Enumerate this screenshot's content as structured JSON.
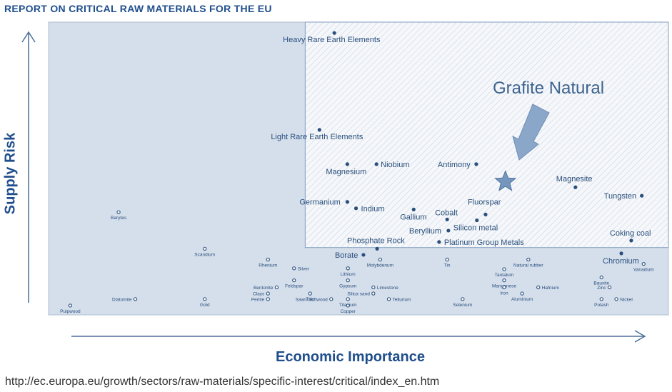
{
  "header": {
    "title": "REPORT ON CRITICAL RAW MATERIALS FOR THE EU"
  },
  "footer": {
    "source": "http://ec.europa.eu/growth/sectors/raw-materials/specific-interest/critical/index_en.htm"
  },
  "colors": {
    "title": "#1f4e8c",
    "axis": "#4d6f9a",
    "plot_bg": "#d5dfec",
    "critical_region": "#f5f7fa",
    "hatch": "#c6d1df",
    "marker": "#2a4f7c",
    "label": "#2a4f7c",
    "arrow": "#8aa7c9",
    "annotation": "#3e648f"
  },
  "chart_data": {
    "type": "scatter",
    "title": "",
    "xlabel": "Economic Importance",
    "ylabel": "Supply Risk",
    "xlim": [
      0,
      100
    ],
    "ylim": [
      0,
      100
    ],
    "grid": false,
    "critical_region": {
      "x_from": 41.4,
      "y_from": 23.0
    },
    "annotation": {
      "text": "Grafite Natural",
      "icon": "star-icon",
      "x": 73.7,
      "y": 45.5
    },
    "critical_points": [
      {
        "label": "Heavy Rare Earth Elements",
        "x": 46.1,
        "y": 96.3
      },
      {
        "label": "Light Rare Earth Elements",
        "x": 43.7,
        "y": 63.2
      },
      {
        "label": "Magnesium",
        "x": 48.2,
        "y": 51.5
      },
      {
        "label": "Niobium",
        "x": 52.9,
        "y": 51.5
      },
      {
        "label": "Antimony",
        "x": 69.0,
        "y": 51.5
      },
      {
        "label": "Magnesite",
        "x": 85.0,
        "y": 43.6
      },
      {
        "label": "Tungsten",
        "x": 95.7,
        "y": 40.7
      },
      {
        "label": "Germanium",
        "x": 48.2,
        "y": 38.6
      },
      {
        "label": "Indium",
        "x": 49.6,
        "y": 36.4
      },
      {
        "label": "Gallium",
        "x": 58.9,
        "y": 36.0
      },
      {
        "label": "Cobalt",
        "x": 64.3,
        "y": 32.6
      },
      {
        "label": "Fluorspar",
        "x": 70.5,
        "y": 34.3
      },
      {
        "label": "Silicon metal",
        "x": 69.1,
        "y": 32.3
      },
      {
        "label": "Beryllium",
        "x": 64.5,
        "y": 28.8
      },
      {
        "label": "Platinum Group Metals",
        "x": 63.0,
        "y": 24.9
      },
      {
        "label": "Phosphate Rock",
        "x": 53.0,
        "y": 22.6
      },
      {
        "label": "Borate",
        "x": 50.8,
        "y": 20.5
      },
      {
        "label": "Coking coal",
        "x": 94.0,
        "y": 25.4
      },
      {
        "label": "Chromium",
        "x": 92.4,
        "y": 21.0
      }
    ],
    "other_points": [
      {
        "label": "Barytes",
        "x": 11.3,
        "y": 35.1
      },
      {
        "label": "Scandium",
        "x": 25.2,
        "y": 22.6
      },
      {
        "label": "Rhenium",
        "x": 35.4,
        "y": 18.9
      },
      {
        "label": "Silver",
        "x": 39.6,
        "y": 15.9
      },
      {
        "label": "Lithium",
        "x": 48.3,
        "y": 15.9
      },
      {
        "label": "Molybdenum",
        "x": 53.5,
        "y": 18.9
      },
      {
        "label": "Tin",
        "x": 64.3,
        "y": 18.9
      },
      {
        "label": "Natural rubber",
        "x": 77.4,
        "y": 18.9
      },
      {
        "label": "Vanadium",
        "x": 96.0,
        "y": 17.4
      },
      {
        "label": "Tantalum",
        "x": 73.5,
        "y": 15.6
      },
      {
        "label": "Feldspar",
        "x": 39.6,
        "y": 11.8
      },
      {
        "label": "Gypsum",
        "x": 48.3,
        "y": 11.8
      },
      {
        "label": "Manganese",
        "x": 73.5,
        "y": 11.8
      },
      {
        "label": "Bauxite",
        "x": 89.2,
        "y": 12.8
      },
      {
        "label": "Bentonite",
        "x": 36.8,
        "y": 9.4
      },
      {
        "label": "Limestone",
        "x": 52.4,
        "y": 9.4
      },
      {
        "label": "Iron",
        "x": 73.5,
        "y": 9.4
      },
      {
        "label": "Hafnium",
        "x": 79.0,
        "y": 9.4
      },
      {
        "label": "Zinc",
        "x": 90.5,
        "y": 9.4
      },
      {
        "label": "Clays",
        "x": 35.4,
        "y": 7.3
      },
      {
        "label": "Talc",
        "x": 42.2,
        "y": 7.3
      },
      {
        "label": "Silica sand",
        "x": 52.4,
        "y": 7.3
      },
      {
        "label": "Aluminium",
        "x": 76.4,
        "y": 7.3
      },
      {
        "label": "Perlite",
        "x": 35.4,
        "y": 5.4
      },
      {
        "label": "Sawn Softwood",
        "x": 45.6,
        "y": 5.4
      },
      {
        "label": "Titanium",
        "x": 48.3,
        "y": 5.4
      },
      {
        "label": "Tellurium",
        "x": 54.9,
        "y": 5.4
      },
      {
        "label": "Gold",
        "x": 25.2,
        "y": 5.4
      },
      {
        "label": "Diatomite",
        "x": 14.0,
        "y": 5.4
      },
      {
        "label": "Selenium",
        "x": 66.8,
        "y": 5.4
      },
      {
        "label": "Nickel",
        "x": 91.6,
        "y": 5.4
      },
      {
        "label": "Copper",
        "x": 48.3,
        "y": 3.2
      },
      {
        "label": "Potash",
        "x": 89.2,
        "y": 5.4
      },
      {
        "label": "Pulpwood",
        "x": 3.5,
        "y": 3.2
      }
    ]
  }
}
